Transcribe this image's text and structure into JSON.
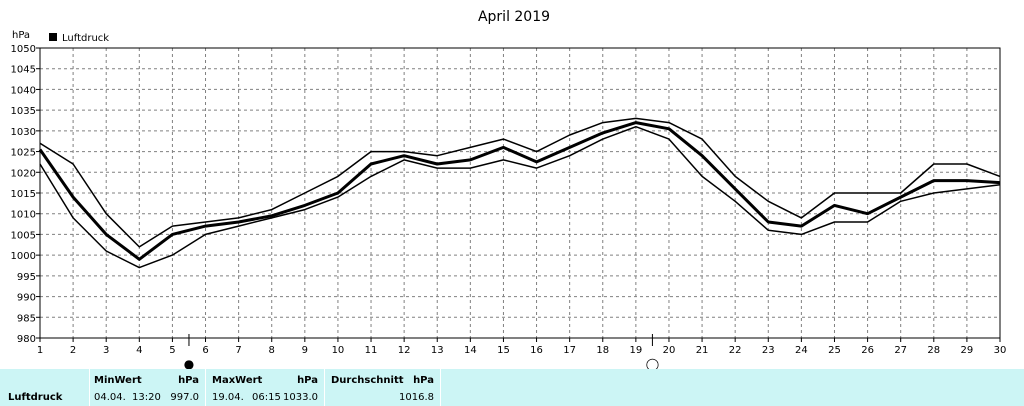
{
  "chart_data": {
    "type": "line",
    "title": "April 2019",
    "ylabel": "hPa",
    "legend_label": "Luftdruck",
    "legend_placement": "top-left",
    "grid": true,
    "ylim": [
      980,
      1050
    ],
    "yticks": [
      980,
      985,
      990,
      995,
      1000,
      1005,
      1010,
      1015,
      1020,
      1025,
      1030,
      1035,
      1040,
      1045,
      1050
    ],
    "xlim": [
      1,
      30
    ],
    "x": [
      1,
      2,
      3,
      4,
      5,
      6,
      7,
      8,
      9,
      10,
      11,
      12,
      13,
      14,
      15,
      16,
      17,
      18,
      19,
      20,
      21,
      22,
      23,
      24,
      25,
      26,
      27,
      28,
      29,
      30
    ],
    "series": [
      {
        "role": "max",
        "values": [
          1027,
          1022,
          1010,
          1002,
          1007,
          1008,
          1009,
          1011,
          1015,
          1019,
          1025,
          1025,
          1024,
          1026,
          1028,
          1025,
          1029,
          1032,
          1033,
          1032,
          1028,
          1019,
          1013,
          1009,
          1015,
          1015,
          1015,
          1022,
          1022,
          1019
        ]
      },
      {
        "role": "mean",
        "values": [
          1025.5,
          1014,
          1005,
          999,
          1005,
          1007,
          1008,
          1009.5,
          1012,
          1015,
          1022,
          1024,
          1022,
          1023,
          1026,
          1022.5,
          1026,
          1029.5,
          1032,
          1030.5,
          1024,
          1016,
          1008,
          1007,
          1012,
          1010,
          1014,
          1018,
          1018,
          1017.5
        ]
      },
      {
        "role": "min",
        "values": [
          1022,
          1009,
          1001,
          997,
          1000,
          1005,
          1007,
          1009,
          1011,
          1014,
          1019,
          1023,
          1021,
          1021,
          1023,
          1021,
          1024,
          1028,
          1031,
          1028,
          1019,
          1013,
          1006,
          1005,
          1008,
          1008,
          1013,
          1015,
          1016,
          1017
        ]
      }
    ],
    "moon_markers": [
      {
        "day": 5.5,
        "phase": "new",
        "symbol": "●"
      },
      {
        "day": 19.5,
        "phase": "full",
        "symbol": "◯"
      }
    ],
    "colors": {
      "line": "#000000",
      "grid": "#808080",
      "stats_bg": "#ccf5f5"
    }
  },
  "stats": {
    "label": "Luftdruck",
    "min_header": "MinWert",
    "max_header": "MaxWert",
    "avg_header": "Durchschnitt",
    "unit": "hPa",
    "min_date": "04.04.",
    "min_time": "13:20",
    "min_value": "997.0",
    "max_date": "19.04.",
    "max_time": "06:15",
    "max_value": "1033.0",
    "avg_value": "1016.8"
  }
}
